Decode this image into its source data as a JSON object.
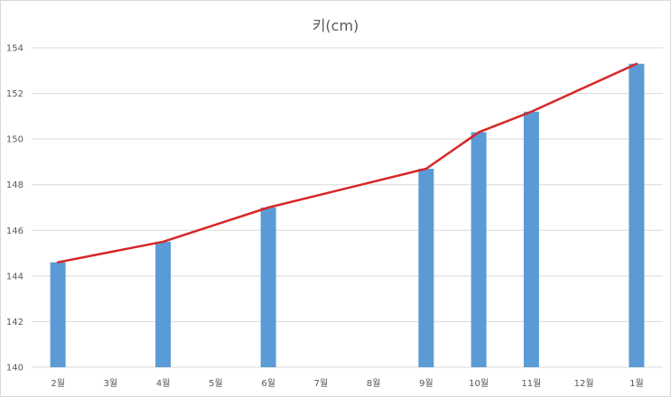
{
  "chart_data": {
    "type": "bar",
    "title": "키(cm)",
    "categories": [
      "2월",
      "3월",
      "4월",
      "5월",
      "6월",
      "7월",
      "8월",
      "9월",
      "10월",
      "11월",
      "12월",
      "1월"
    ],
    "series": [
      {
        "type": "bar",
        "values": [
          144.6,
          null,
          145.5,
          null,
          147.0,
          null,
          null,
          148.7,
          150.3,
          151.2,
          null,
          153.3
        ]
      },
      {
        "type": "line",
        "values": [
          144.6,
          null,
          145.5,
          null,
          147.0,
          null,
          null,
          148.7,
          150.3,
          151.2,
          null,
          153.3
        ]
      }
    ],
    "yticks": [
      "140",
      "142",
      "144",
      "146",
      "148",
      "150",
      "152",
      "154"
    ],
    "ylim": [
      140,
      154
    ],
    "grid": true,
    "colors": {
      "bar": "#5b9bd5",
      "line": "#d62728",
      "grid": "#d9d9d9"
    }
  }
}
